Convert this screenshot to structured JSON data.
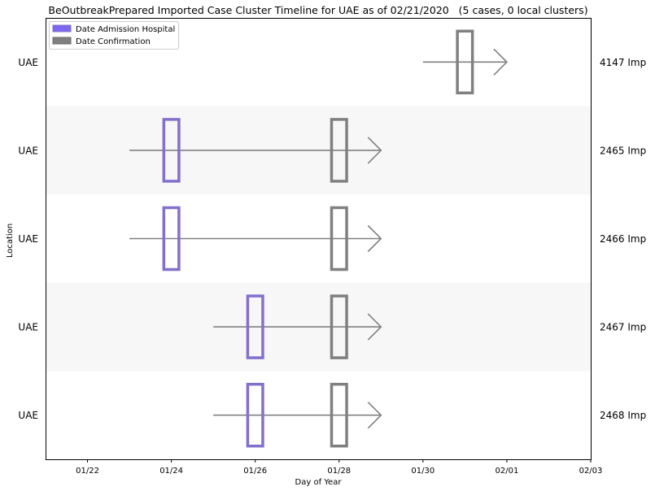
{
  "chart_data": {
    "type": "timeline",
    "title": "BeOutbreakPrepared Imported Case Cluster Timeline for UAE as of 02/21/2020   (5 cases, 0 local clusters)",
    "xlabel": "Day of Year",
    "ylabel": "Location",
    "x_ticks": [
      "01/22",
      "01/24",
      "01/26",
      "01/28",
      "01/30",
      "02/01",
      "02/03"
    ],
    "xlim": [
      "2020-01-21",
      "2020-02-03"
    ],
    "legend": {
      "placement": "top-left",
      "entries": [
        {
          "label": "Date Admission Hospital",
          "color": "#7b68ee"
        },
        {
          "label": "Date Confirmation",
          "color": "#808080"
        }
      ]
    },
    "colors": {
      "admission": "#7b68ee",
      "admission_stroke": "#8470cc",
      "confirmation": "#808080",
      "line": "#808080",
      "band": "#f7f7f7"
    },
    "rows": [
      {
        "location": "UAE",
        "case": "4147 Imp",
        "start": "2020-01-30",
        "admission": null,
        "confirmation": "2020-01-31",
        "end": "2020-02-01",
        "shaded": false
      },
      {
        "location": "UAE",
        "case": "2465 Imp",
        "start": "2020-01-23",
        "admission": "2020-01-24",
        "confirmation": "2020-01-28",
        "end": "2020-01-29",
        "shaded": true
      },
      {
        "location": "UAE",
        "case": "2466 Imp",
        "start": "2020-01-23",
        "admission": "2020-01-24",
        "confirmation": "2020-01-28",
        "end": "2020-01-29",
        "shaded": false
      },
      {
        "location": "UAE",
        "case": "2467 Imp",
        "start": "2020-01-25",
        "admission": "2020-01-26",
        "confirmation": "2020-01-28",
        "end": "2020-01-29",
        "shaded": true
      },
      {
        "location": "UAE",
        "case": "2468 Imp",
        "start": "2020-01-25",
        "admission": "2020-01-26",
        "confirmation": "2020-01-28",
        "end": "2020-01-29",
        "shaded": false
      }
    ]
  }
}
